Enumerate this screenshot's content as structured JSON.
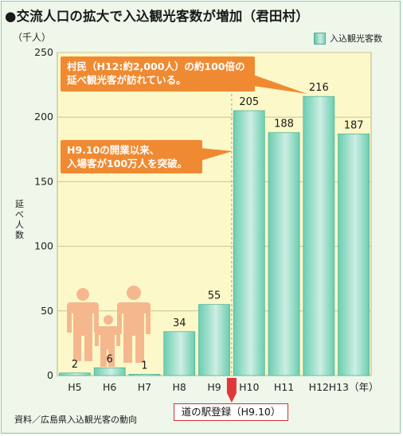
{
  "title": "●交流人口の拡大で入込観光客数が増加（君田村）",
  "unit_label": "（千人）",
  "legend": {
    "label": "入込観光客数"
  },
  "source": "資料／広島県入込観光客の動向",
  "event": {
    "label": "道の駅登録（H9.10）"
  },
  "callouts": [
    {
      "line1": "村民（H12:約2,000人）の約100倍の",
      "line2": "延べ観光客が訪れている。"
    },
    {
      "line1": "H9.10の開業以来、",
      "line2": "入場客が100万人を突破。"
    }
  ],
  "colors": {
    "plot_background": "#fdf8c9",
    "bar_edge": "#6bcdb1",
    "bar_mid": "#cdeee3",
    "callout": "#f08a32",
    "event_marker": "#e03838",
    "people_icon": "#f5b88e"
  },
  "icons": [
    "family-icon"
  ],
  "chart_data": {
    "type": "bar",
    "categories": [
      "H5",
      "H6",
      "H7",
      "H8",
      "H9",
      "H10",
      "H11",
      "H12",
      "H13"
    ],
    "tick_labels": [
      "H5",
      "H6",
      "H7",
      "H8",
      "H9",
      "H10",
      "H11",
      "H12",
      "H13（年）"
    ],
    "series": [
      {
        "name": "入込観光客数",
        "values": [
          2,
          6,
          1,
          34,
          55,
          205,
          188,
          216,
          187
        ]
      }
    ],
    "data_labels": [
      "2",
      "6",
      "1",
      "34",
      "55",
      "205",
      "188",
      "216",
      "187"
    ],
    "title": "",
    "xlabel": "",
    "ylabel": "延べ人数",
    "ylim": [
      0,
      250
    ],
    "yticks": [
      0,
      50,
      100,
      150,
      200,
      250
    ],
    "grid": "horizontal",
    "legend_position": "top-right"
  }
}
